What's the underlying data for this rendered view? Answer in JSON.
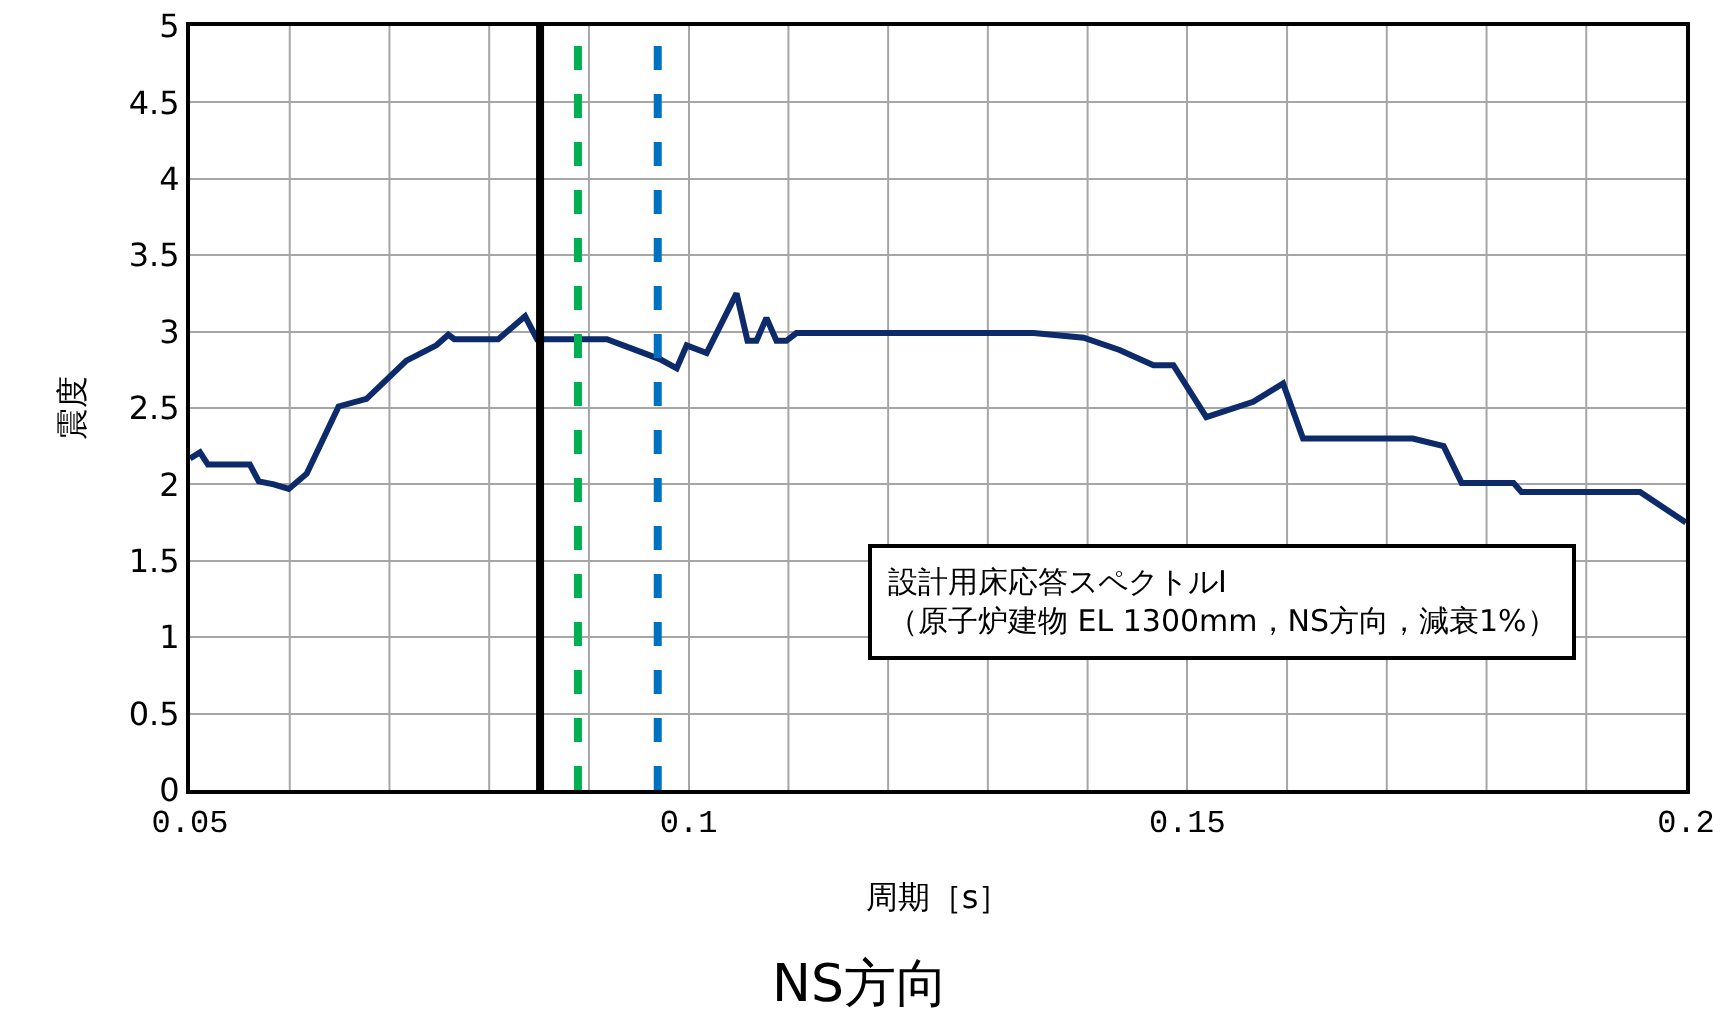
{
  "chart_data": {
    "type": "line",
    "title": "NS方向",
    "xlabel": "周期［s］",
    "ylabel": "震度",
    "x": [
      0.05,
      0.051,
      0.0518,
      0.056,
      0.0569,
      0.0584,
      0.0599,
      0.0617,
      0.0649,
      0.0677,
      0.0717,
      0.0747,
      0.0759,
      0.0765,
      0.0809,
      0.0836,
      0.0848,
      0.0918,
      0.0971,
      0.0988,
      0.0998,
      0.1018,
      0.1048,
      0.1059,
      0.1068,
      0.1078,
      0.1088,
      0.1098,
      0.1108,
      0.1346,
      0.1396,
      0.1432,
      0.1466,
      0.1486,
      0.1519,
      0.1566,
      0.1596,
      0.1616,
      0.1726,
      0.1757,
      0.1775,
      0.1827,
      0.1835,
      0.1954,
      0.2
    ],
    "series": [
      {
        "color": "#0d2a6b",
        "values": [
          2.17,
          2.21,
          2.13,
          2.13,
          2.02,
          2.0,
          1.97,
          2.07,
          2.51,
          2.56,
          2.81,
          2.91,
          2.98,
          2.95,
          2.95,
          3.1,
          2.95,
          2.95,
          2.82,
          2.76,
          2.91,
          2.86,
          3.25,
          2.94,
          2.94,
          3.09,
          2.94,
          2.94,
          2.99,
          2.99,
          2.96,
          2.88,
          2.78,
          2.78,
          2.44,
          2.54,
          2.66,
          2.3,
          2.3,
          2.25,
          2.01,
          2.01,
          1.95,
          1.95,
          1.75
        ]
      }
    ],
    "xlim": [
      0.05,
      0.2
    ],
    "xticks": [
      0.05,
      0.1,
      0.15,
      0.2
    ],
    "ylim": [
      0,
      5
    ],
    "yticks": [
      0,
      0.5,
      1,
      1.5,
      2,
      2.5,
      3,
      3.5,
      4,
      4.5,
      5
    ],
    "ref_lines": [
      {
        "axis": "x",
        "value": 0.0851,
        "color": "#000000",
        "line_style": "solid"
      },
      {
        "axis": "x",
        "value": 0.0889,
        "color": "#00b050",
        "line_style": "dashed"
      },
      {
        "axis": "x",
        "value": 0.0969,
        "color": "#0070c0",
        "line_style": "dashed"
      }
    ],
    "annotations": [
      "設計用床応答スペクトルⅠ\n（原子炉建物 EL 1300mm，NS方向，減衰1%）"
    ],
    "grid": true,
    "marker": "none",
    "line_style": "solid"
  }
}
